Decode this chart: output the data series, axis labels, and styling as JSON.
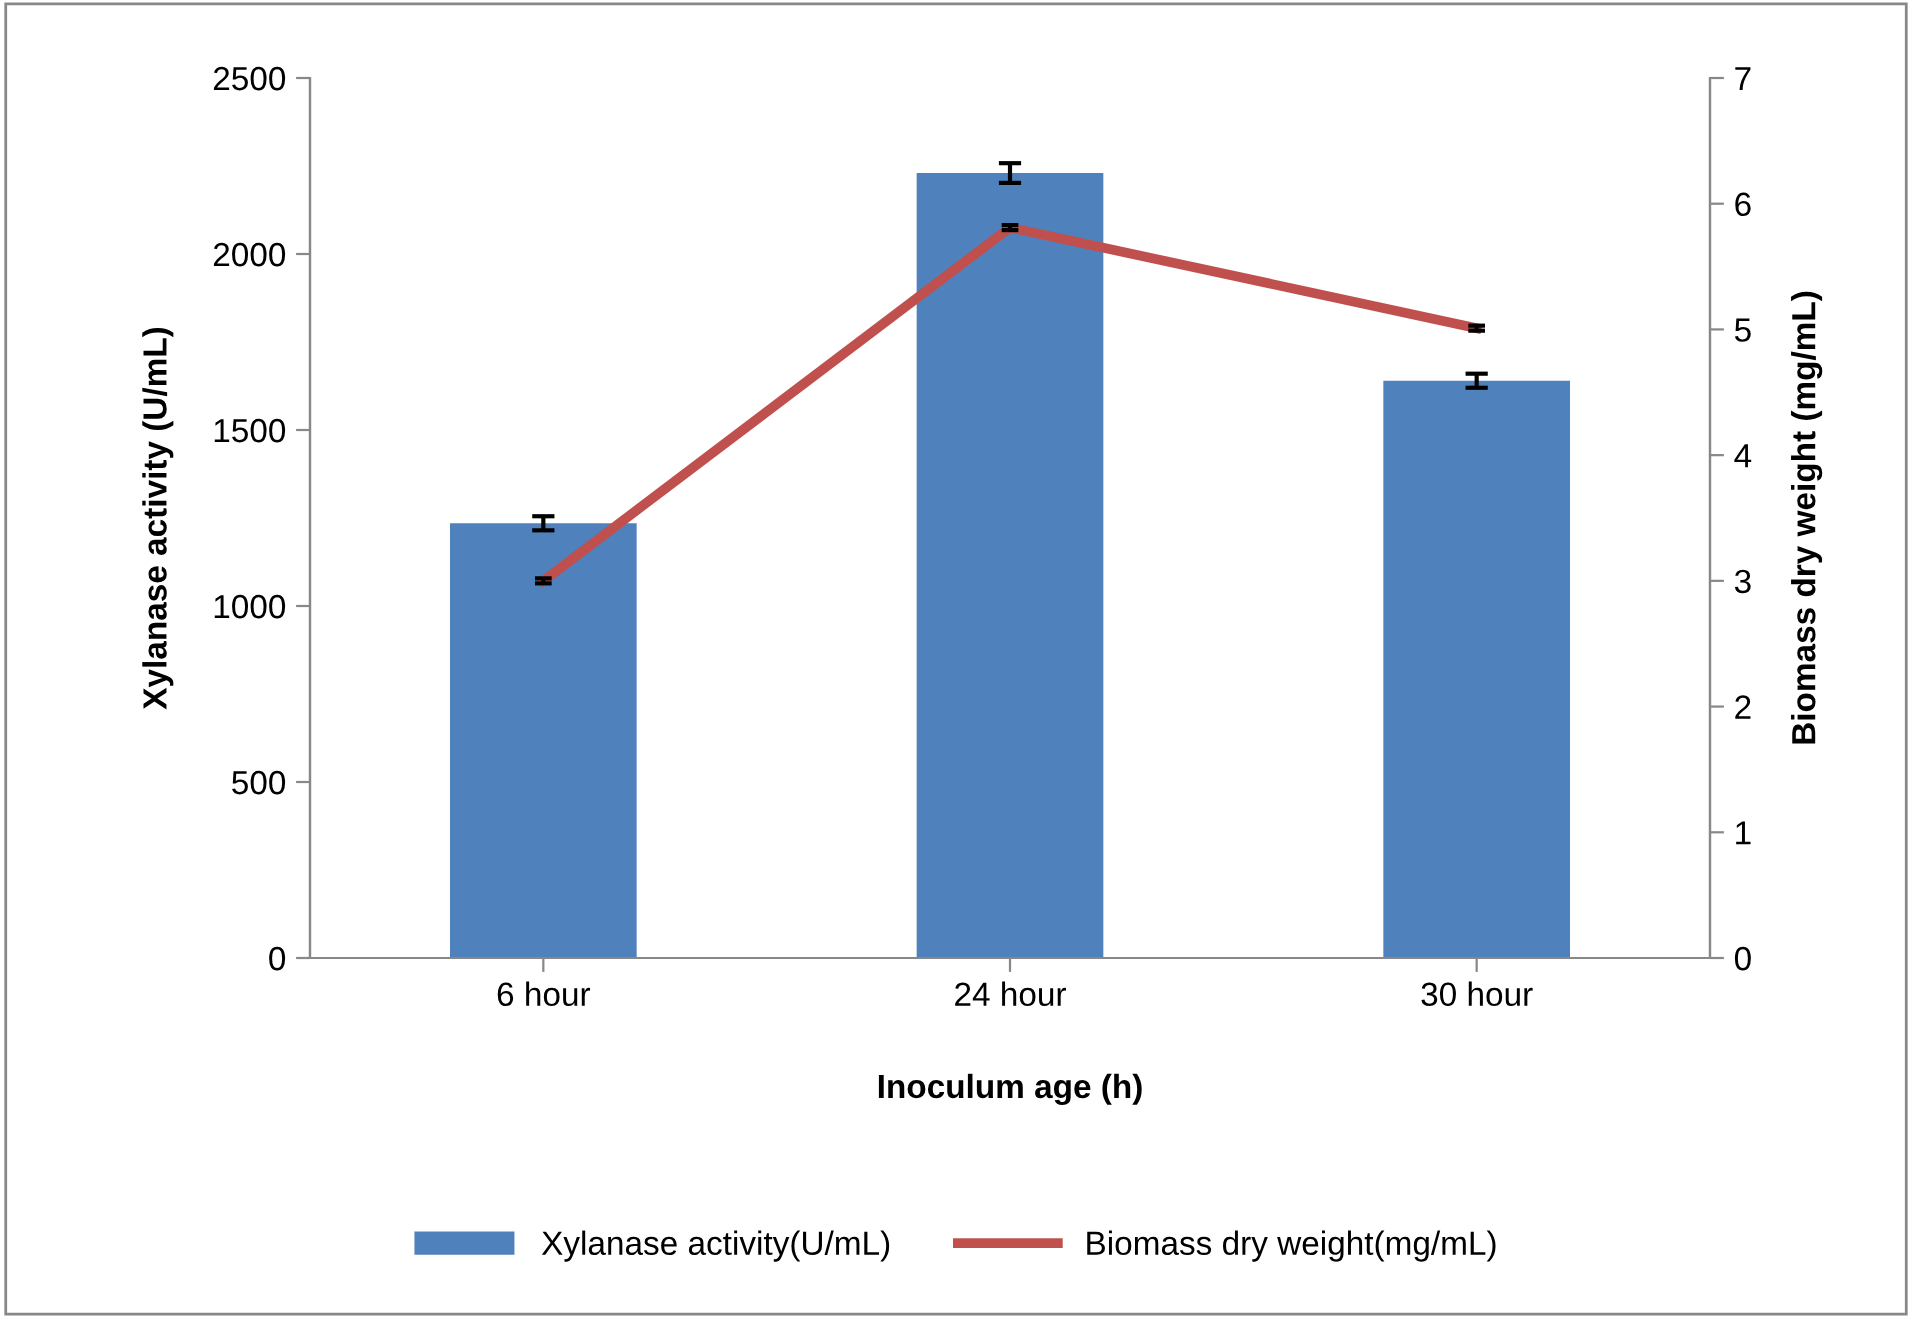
{
  "chart_data": {
    "type": "bar",
    "xlabel": "Inoculum age (h)",
    "ylabel": "Xylanase activity (U/mL)",
    "y2label": "Biomass dry weight (mg/mL)",
    "categories": [
      "6 hour",
      "24 hour",
      "30 hour"
    ],
    "series": [
      {
        "name": "Xylanase activity(U/mL)",
        "color": "#4f81bd",
        "values": [
          1235,
          2230,
          1640
        ],
        "errors": [
          20,
          28,
          20
        ]
      },
      {
        "name": "Biomass dry weight(mg/mL)",
        "type": "line",
        "axis": "y2",
        "color": "#c0504d",
        "values": [
          3.0,
          5.81,
          5.01
        ],
        "errors": [
          0.02,
          0.02,
          0.02
        ]
      }
    ],
    "ylim": [
      0,
      2500
    ],
    "yticks": [
      0,
      500,
      1000,
      1500,
      2000,
      2500
    ],
    "y2lim": [
      0,
      7
    ],
    "y2ticks": [
      0,
      1,
      2,
      3,
      4,
      5,
      6,
      7
    ],
    "grid": false,
    "legend": "bottom",
    "marker": "none",
    "line_style": "solid"
  }
}
